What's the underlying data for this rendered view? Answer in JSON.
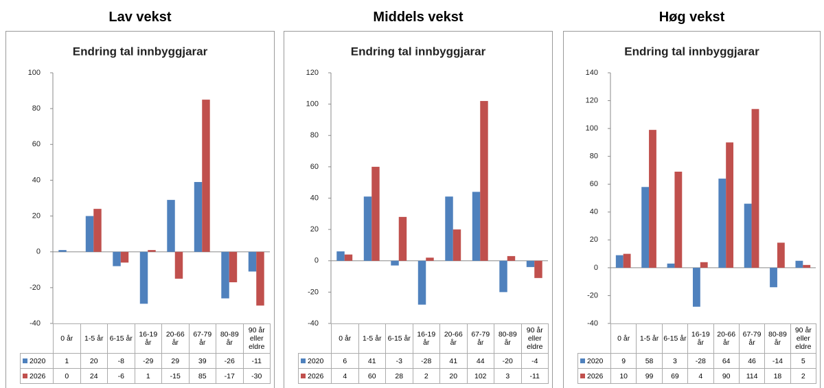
{
  "chart_data": [
    {
      "type": "bar",
      "heading": "Lav vekst",
      "title": "Endring tal innbyggjarar",
      "categories": [
        "0 år",
        "1-5 år",
        "6-15 år",
        "16-19 år",
        "20-66 år",
        "67-79 år",
        "80-89 år",
        "90 år eller eldre"
      ],
      "series": [
        {
          "name": "2020",
          "color": "#4f81bd",
          "values": [
            1,
            20,
            -8,
            -29,
            29,
            39,
            -26,
            -11
          ]
        },
        {
          "name": "2026",
          "color": "#c0504d",
          "values": [
            0,
            24,
            -6,
            1,
            -15,
            85,
            -17,
            -30
          ]
        }
      ],
      "ylim": [
        -40,
        100
      ],
      "yticks": [
        -40,
        -20,
        0,
        20,
        40,
        60,
        80,
        100
      ]
    },
    {
      "type": "bar",
      "heading": "Middels vekst",
      "title": "Endring tal innbyggjarar",
      "categories": [
        "0 år",
        "1-5 år",
        "6-15 år",
        "16-19 år",
        "20-66 år",
        "67-79 år",
        "80-89 år",
        "90 år eller eldre"
      ],
      "series": [
        {
          "name": "2020",
          "color": "#4f81bd",
          "values": [
            6,
            41,
            -3,
            -28,
            41,
            44,
            -20,
            -4
          ]
        },
        {
          "name": "2026",
          "color": "#c0504d",
          "values": [
            4,
            60,
            28,
            2,
            20,
            102,
            3,
            -11
          ]
        }
      ],
      "ylim": [
        -40,
        120
      ],
      "yticks": [
        -40,
        -20,
        0,
        20,
        40,
        60,
        80,
        100,
        120
      ]
    },
    {
      "type": "bar",
      "heading": "Høg vekst",
      "title": "Endring tal innbyggjarar",
      "categories": [
        "0 år",
        "1-5 år",
        "6-15 år",
        "16-19 år",
        "20-66 år",
        "67-79 år",
        "80-89 år",
        "90 år eller eldre"
      ],
      "series": [
        {
          "name": "2020",
          "color": "#4f81bd",
          "values": [
            9,
            58,
            3,
            -28,
            64,
            46,
            -14,
            5
          ]
        },
        {
          "name": "2026",
          "color": "#c0504d",
          "values": [
            10,
            99,
            69,
            4,
            90,
            114,
            18,
            2
          ]
        }
      ],
      "ylim": [
        -40,
        140
      ],
      "yticks": [
        -40,
        -20,
        0,
        20,
        40,
        60,
        80,
        100,
        120,
        140
      ]
    }
  ]
}
